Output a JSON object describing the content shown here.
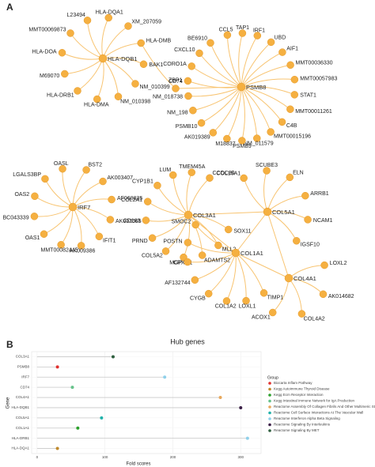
{
  "panel_a": {
    "label": "A",
    "bridge": "CD74",
    "networks": [
      {
        "hub": "HLA-DQB1",
        "neighbors": [
          "L23494",
          "HLA-DQA1",
          "XM_207059",
          "HLA-DMB",
          "BAK1",
          "NM_010399",
          "NM_010398",
          "HLA-DMA",
          "HLA-DRB1",
          "M69070",
          "HLA-DOA",
          "MMT00069873"
        ]
      },
      {
        "hub": "PSMB8",
        "neighbors": [
          "CCL5",
          "TAP1",
          "IRF1",
          "UBD",
          "AIF1",
          "MMT00036330",
          "MMT00057983",
          "STAT1",
          "MMT00011261",
          "C4B",
          "MMT00015196",
          "NM_011579",
          "PSMB9",
          "M18837",
          "AK019389",
          "PSMB10",
          "NM_198",
          "NM_018738",
          "ZBP1",
          "CORO1A",
          "CXCL10",
          "BE6910"
        ]
      },
      {
        "hub": "IRF7",
        "neighbors": [
          "BST2",
          "AK003407",
          "AF068835",
          "AK003665",
          "IFIT1",
          "AK009386",
          "MMT00082445",
          "OAS1",
          "BC043339",
          "OAS2",
          "LGALS3BP",
          "OASL"
        ]
      },
      {
        "hub": "COL3A1",
        "neighbors": [
          "SOX11",
          "MLL2",
          "ADAMTS2",
          "CPXM1",
          "COL5A2",
          "PRND",
          "CD163",
          "COL2A1",
          "CYP1B1",
          "LUM",
          "TMEM45A",
          "CCDC80"
        ]
      },
      {
        "hub": "COL5A1",
        "neighbors": [
          "COL15A1",
          "SCUBE3",
          "ELN",
          "ARRB1",
          "NCAM1",
          "IGSF10"
        ]
      },
      {
        "hub": "COL1A1",
        "neighbors": [
          "TIMP1",
          "LOXL1",
          "COL1A2",
          "CYGB",
          "AF132744",
          "MGP",
          "POSTN",
          "SMOC2"
        ]
      },
      {
        "hub": "COL4A1",
        "neighbors": [
          "LOXL2",
          "AK014682",
          "COL4A2",
          "ACOX1"
        ]
      }
    ]
  },
  "chart_data": {
    "type": "lollipop",
    "panel_label": "B",
    "title": "Hub genes",
    "x_label": "Fold scores",
    "y_label": "Gene",
    "legend_title": "Group",
    "categories": [
      "COL3A1",
      "PSMB8",
      "IRF7",
      "CD74",
      "COL4A1",
      "HLA-DQB1",
      "COL5A1",
      "COL1A1",
      "HLA-DRB1",
      "HLA-DQA1"
    ],
    "xlim": [
      -8,
      330
    ],
    "xticks": [
      0,
      100,
      200,
      300
    ],
    "grid": true,
    "series": [
      {
        "name": "Biocarta Inflam Pathway",
        "color": "#e0302e",
        "values": [
          null,
          30,
          null,
          null,
          null,
          null,
          null,
          null,
          null,
          null
        ]
      },
      {
        "name": "Kegg Autoimmune Thyroid Disease",
        "color": "#c08a2c",
        "values": [
          null,
          null,
          null,
          null,
          null,
          null,
          null,
          null,
          null,
          30
        ]
      },
      {
        "name": "Kegg Ecm Receptor Interaction",
        "color": "#2ca02c",
        "values": [
          null,
          null,
          null,
          null,
          null,
          null,
          null,
          60,
          null,
          null
        ]
      },
      {
        "name": "Kegg Intestinal Immune Network for IgA Production",
        "color": "#66c28a",
        "values": [
          null,
          null,
          null,
          52,
          null,
          null,
          null,
          null,
          null,
          null
        ]
      },
      {
        "name": "Reactome Assembly Of Collagen Fibrils And Other Multimeric Structures",
        "color": "#e8a85c",
        "values": [
          null,
          null,
          null,
          null,
          270,
          null,
          null,
          null,
          null,
          null
        ]
      },
      {
        "name": "Reactome Cell Surface Interactions At The Vascular Wall",
        "color": "#20b2aa",
        "values": [
          null,
          null,
          null,
          null,
          null,
          null,
          95,
          null,
          null,
          null
        ]
      },
      {
        "name": "Reactome Interferon Alpha Beta Signaling",
        "color": "#8fd0ea",
        "values": [
          null,
          null,
          188,
          null,
          null,
          null,
          null,
          null,
          310,
          null
        ]
      },
      {
        "name": "Reactome Signaling By Interleukins",
        "color": "#3b1f47",
        "values": [
          null,
          null,
          null,
          null,
          null,
          300,
          null,
          null,
          null,
          null
        ]
      },
      {
        "name": "Reactome Signaling By MET",
        "color": "#2f5f3f",
        "values": [
          112,
          null,
          null,
          null,
          null,
          null,
          null,
          null,
          null,
          null
        ]
      }
    ]
  }
}
